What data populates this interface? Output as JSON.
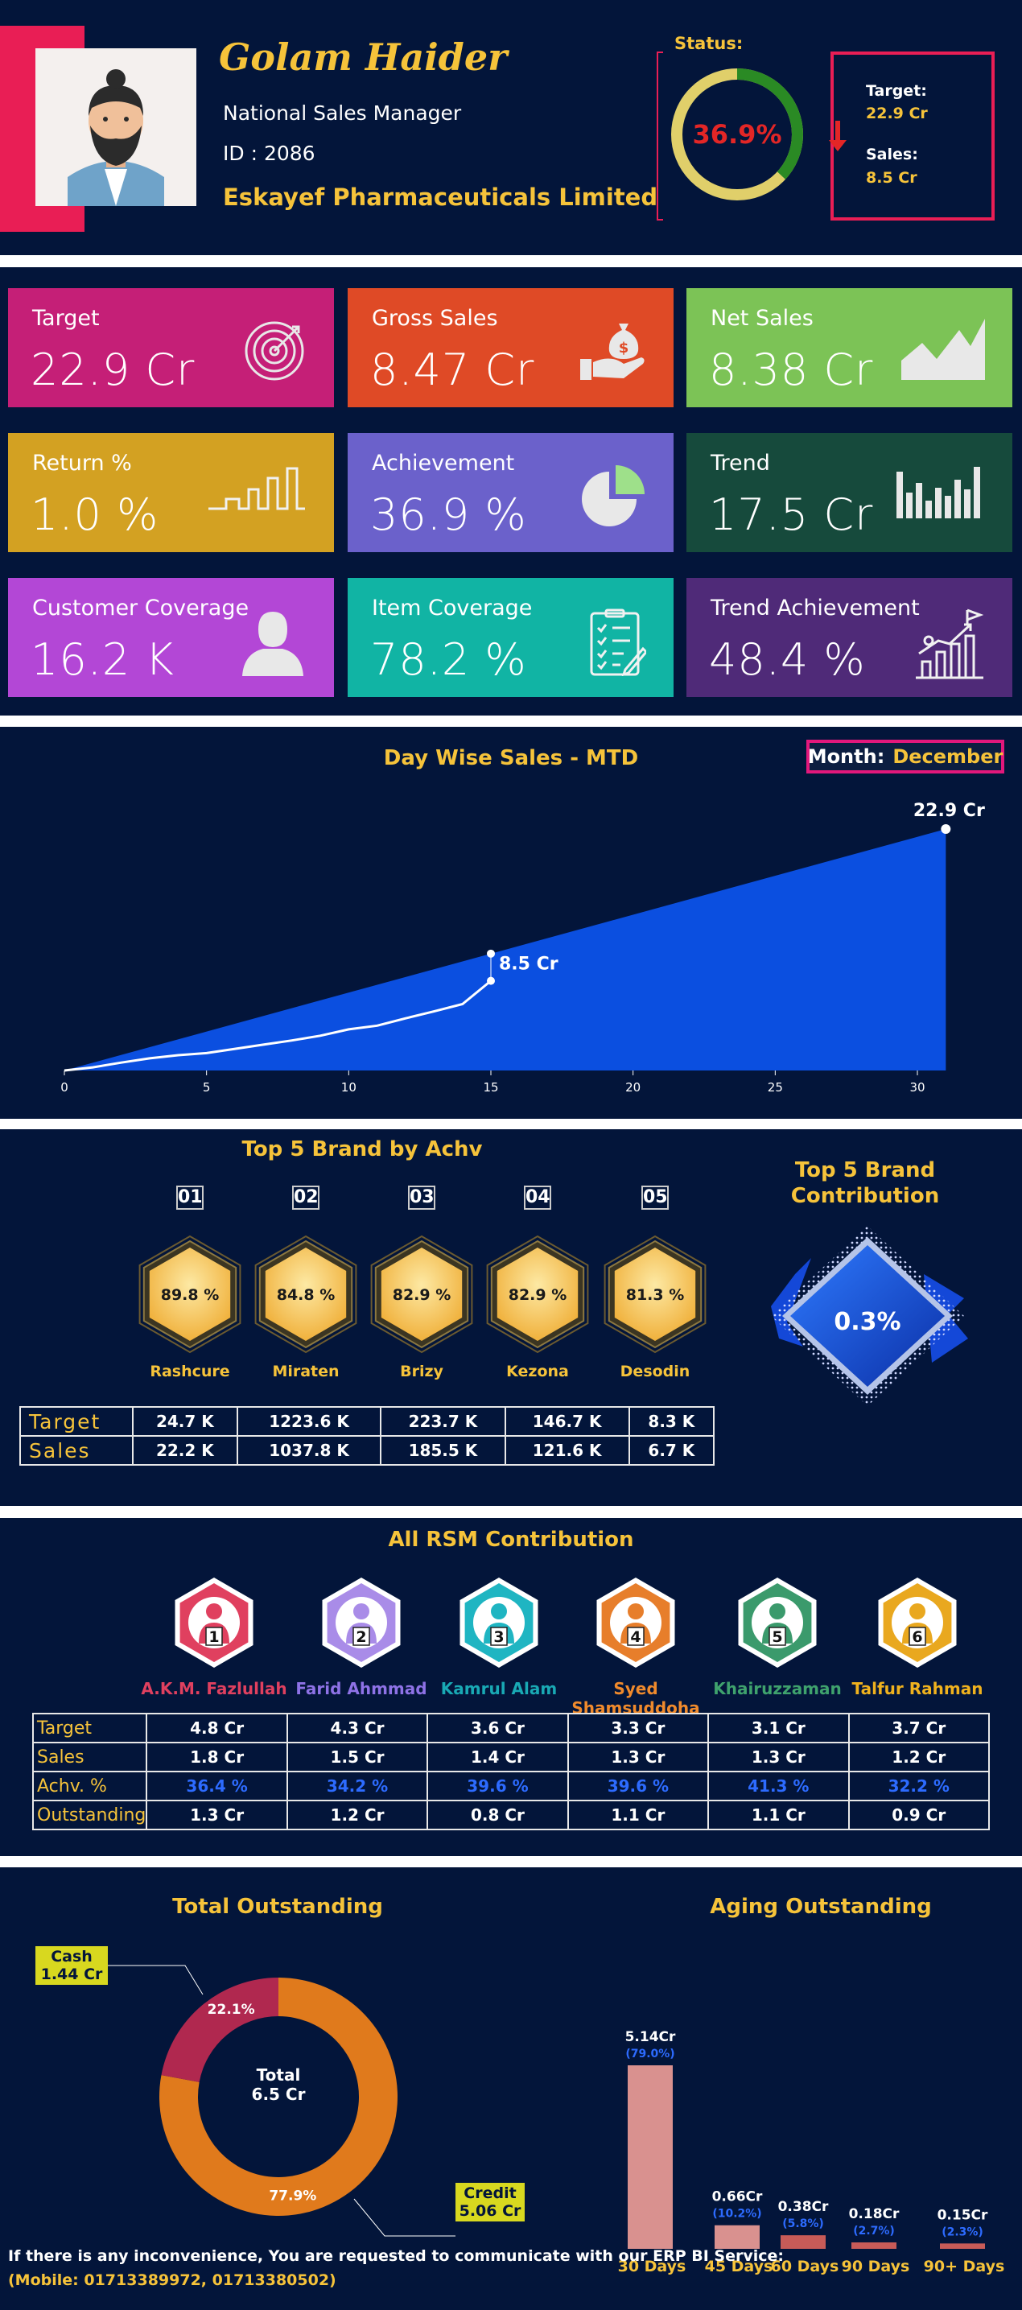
{
  "header": {
    "name": "Golam Haider",
    "designation": "National Sales Manager",
    "id_text": "ID : 2086",
    "company": "Eskayef Pharmaceuticals Limited",
    "status_label": "Status:",
    "status_percent": "36.9%",
    "status_fraction": 0.369,
    "target_label": "Target:",
    "target_value": "22.9 Cr",
    "sales_label": "Sales:",
    "sales_value": "8.5 Cr"
  },
  "kpis": [
    {
      "label": "Target",
      "value": "22.9 Cr",
      "color": "#c51f77",
      "icon": "target-icon"
    },
    {
      "label": "Gross Sales",
      "value": "8.47 Cr",
      "color": "#df4a26",
      "icon": "money-hand-icon"
    },
    {
      "label": "Net Sales",
      "value": "8.38 Cr",
      "color": "#7cc356",
      "icon": "area-chart-icon"
    },
    {
      "label": "Return %",
      "value": "1.0 %",
      "color": "#d3a122",
      "icon": "step-line-icon"
    },
    {
      "label": "Achievement",
      "value": "36.9 %",
      "color": "#6b61cb",
      "icon": "pie-icon"
    },
    {
      "label": "Trend",
      "value": "17.5 Cr",
      "color": "#164a3c",
      "icon": "bar-chart-icon"
    },
    {
      "label": "Customer Coverage",
      "value": "16.2 K",
      "color": "#b347d6",
      "icon": "person-icon"
    },
    {
      "label": "Item Coverage",
      "value": "78.2 %",
      "color": "#11b4a4",
      "icon": "checklist-icon"
    },
    {
      "label": "Trend Achievement",
      "value": "48.4 %",
      "color": "#4f2a78",
      "icon": "growth-flag-icon"
    }
  ],
  "day_wise": {
    "title": "Day Wise Sales - MTD",
    "month_label": "Month:",
    "month_value": "December",
    "chart_data": {
      "type": "area",
      "title": "Day Wise Sales - MTD",
      "xlim": [
        0,
        31
      ],
      "xticks": [
        0,
        5,
        10,
        15,
        20,
        25,
        30
      ],
      "target_end_day": 31,
      "target_end_value": 22.9,
      "target_label": "22.9 Cr",
      "actual_label": "8.5 Cr",
      "actual_x": [
        0,
        1,
        2,
        3,
        4,
        5,
        6,
        7,
        8,
        9,
        10,
        11,
        12,
        13,
        14,
        15
      ],
      "actual_y": [
        0,
        0.3,
        0.75,
        1.15,
        1.45,
        1.65,
        2.05,
        2.45,
        2.85,
        3.3,
        3.9,
        4.25,
        4.95,
        5.6,
        6.3,
        8.5
      ]
    }
  },
  "brands": {
    "title": "Top 5 Brand by Achv",
    "contribution_title_1": "Top 5 Brand",
    "contribution_title_2": "Contribution",
    "contribution_value": "0.3%",
    "items": [
      {
        "rank": "01",
        "achv": "89.8 %",
        "name": "Rashcure",
        "target": "24.7 K",
        "sales": "22.2 K"
      },
      {
        "rank": "02",
        "achv": "84.8 %",
        "name": "Miraten",
        "target": "1223.6 K",
        "sales": "1037.8 K"
      },
      {
        "rank": "03",
        "achv": "82.9 %",
        "name": "Brizy",
        "target": "223.7 K",
        "sales": "185.5 K"
      },
      {
        "rank": "04",
        "achv": "82.9 %",
        "name": "Kezona",
        "target": "146.7 K",
        "sales": "121.6 K"
      },
      {
        "rank": "05",
        "achv": "81.3 %",
        "name": "Desodin",
        "target": "8.3 K",
        "sales": "6.7 K"
      }
    ],
    "row_target": "Target",
    "row_sales": "Sales"
  },
  "rsm": {
    "title": "All RSM Contribution",
    "row_labels": [
      "Target",
      "Sales",
      "Achv. %",
      "Outstanding"
    ],
    "items": [
      {
        "rank": "1",
        "name": "A.K.M. Fazlullah",
        "name_color": "#e0405f",
        "hex_color": "#e0405f",
        "target": "4.8 Cr",
        "sales": "1.8 Cr",
        "achv": "36.4 %",
        "outstanding": "1.3 Cr"
      },
      {
        "rank": "2",
        "name": "Farid Ahmmad",
        "name_color": "#8e72e6",
        "hex_color": "#a98ce8",
        "target": "4.3 Cr",
        "sales": "1.5 Cr",
        "achv": "34.2 %",
        "outstanding": "1.2 Cr"
      },
      {
        "rank": "3",
        "name": "Kamrul Alam",
        "name_color": "#19a9b4",
        "hex_color": "#1fb5c2",
        "target": "3.6 Cr",
        "sales": "1.4 Cr",
        "achv": "39.6 %",
        "outstanding": "0.8 Cr"
      },
      {
        "rank": "4",
        "name": "Syed  Shamsuddoha",
        "name_color": "#f08a2c",
        "hex_color": "#e77e2b",
        "target": "3.3 Cr",
        "sales": "1.3 Cr",
        "achv": "39.6 %",
        "outstanding": "1.1 Cr"
      },
      {
        "rank": "5",
        "name": "Khairuzzaman",
        "name_color": "#3fa26d",
        "hex_color": "#3b9a6c",
        "target": "3.1 Cr",
        "sales": "1.3 Cr",
        "achv": "41.3 %",
        "outstanding": "1.1 Cr"
      },
      {
        "rank": "6",
        "name": "Talfur Rahman",
        "name_color": "#f0b21e",
        "hex_color": "#e9a81f",
        "target": "3.7 Cr",
        "sales": "1.2 Cr",
        "achv": "32.2 %",
        "outstanding": "0.9 Cr"
      }
    ]
  },
  "outstanding": {
    "title": "Total Outstanding",
    "center_line1": "Total",
    "center_line2": "6.5 Cr",
    "cash_label": "Cash",
    "cash_value": "1.44 Cr",
    "credit_label": "Credit",
    "credit_value": "5.06 Cr",
    "cash_pct": "22.1%",
    "credit_pct": "77.9%",
    "chart_data": {
      "type": "pie",
      "labels": [
        "Credit",
        "Cash"
      ],
      "values": [
        77.9,
        22.1
      ],
      "colors": [
        "#e07a1c",
        "#b0284f"
      ]
    }
  },
  "aging": {
    "title": "Aging Outstanding",
    "chart_data": {
      "type": "bar",
      "categories": [
        "30 Days",
        "45 Days",
        "60 Days",
        "90 Days",
        "90+ Days"
      ],
      "values": [
        5.14,
        0.66,
        0.38,
        0.18,
        0.15
      ],
      "value_labels": [
        "5.14Cr",
        "0.66Cr",
        "0.38Cr",
        "0.18Cr",
        "0.15Cr"
      ],
      "pct_labels": [
        "(79.0%)",
        "(10.2%)",
        "(5.8%)",
        "(2.7%)",
        "(2.3%)"
      ],
      "bar_colors": [
        "#d9918f",
        "#d9918f",
        "#c75b58",
        "#c75b58",
        "#c75b58"
      ]
    }
  },
  "footer": {
    "line1": "If there is any inconvenience, You are requested to communicate with our ERP BI Service:",
    "line2": "(Mobile: 01713389972, 01713380502)"
  }
}
